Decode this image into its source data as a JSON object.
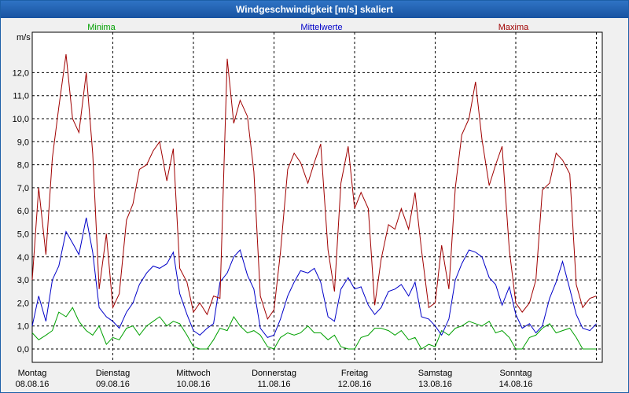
{
  "window": {
    "title": "Windgeschwindigkeit [m/s] skaliert"
  },
  "chart_data": {
    "type": "line",
    "title": "Windgeschwindigkeit [m/s] skaliert",
    "ylabel": "m/s",
    "xlabel": "",
    "ylim": [
      -0.5,
      13.5
    ],
    "yticks": [
      0,
      1,
      2,
      3,
      4,
      5,
      6,
      7,
      8,
      9,
      10,
      11,
      12
    ],
    "ytick_labels": [
      "0,0",
      "1,0",
      "2,0",
      "3,0",
      "4,0",
      "5,0",
      "6,0",
      "7,0",
      "8,0",
      "9,0",
      "10,0",
      "11,0",
      "12,0"
    ],
    "x_range": [
      0,
      7
    ],
    "x_ticks": [
      {
        "pos": 0.0,
        "day": "Montag",
        "date": "08.08.16"
      },
      {
        "pos": 1.0,
        "day": "Dienstag",
        "date": "09.08.16"
      },
      {
        "pos": 2.0,
        "day": "Mittwoch",
        "date": "10.08.16"
      },
      {
        "pos": 3.0,
        "day": "Donnerstag",
        "date": "11.08.16"
      },
      {
        "pos": 4.0,
        "day": "Freitag",
        "date": "12.08.16"
      },
      {
        "pos": 5.0,
        "day": "Samstag",
        "date": "13.08.16"
      },
      {
        "pos": 6.0,
        "day": "Sonntag",
        "date": "14.08.16"
      }
    ],
    "grid": true,
    "legend_position": "top",
    "series": [
      {
        "name": "Minima",
        "color": "#00a000",
        "x": [
          0,
          0.08,
          0.17,
          0.25,
          0.33,
          0.42,
          0.5,
          0.58,
          0.67,
          0.75,
          0.83,
          0.92,
          1,
          1.08,
          1.17,
          1.25,
          1.33,
          1.42,
          1.5,
          1.58,
          1.67,
          1.75,
          1.83,
          1.92,
          2,
          2.08,
          2.17,
          2.25,
          2.33,
          2.42,
          2.5,
          2.58,
          2.67,
          2.75,
          2.83,
          2.92,
          3,
          3.08,
          3.17,
          3.25,
          3.33,
          3.42,
          3.5,
          3.58,
          3.67,
          3.75,
          3.83,
          3.92,
          4,
          4.08,
          4.17,
          4.25,
          4.33,
          4.42,
          4.5,
          4.58,
          4.67,
          4.75,
          4.83,
          4.92,
          5,
          5.08,
          5.17,
          5.25,
          5.33,
          5.42,
          5.5,
          5.58,
          5.67,
          5.75,
          5.83,
          5.92,
          6,
          6.08,
          6.17,
          6.25,
          6.33,
          6.42,
          6.5,
          6.58,
          6.67,
          6.75,
          6.83,
          6.92,
          7
        ],
        "y": [
          0.7,
          0.4,
          0.6,
          0.8,
          1.6,
          1.4,
          1.8,
          1.2,
          0.8,
          0.6,
          1.0,
          0.2,
          0.5,
          0.4,
          0.9,
          1.0,
          0.6,
          1.0,
          1.2,
          1.4,
          1.0,
          1.2,
          1.1,
          0.6,
          0.1,
          0.0,
          0.0,
          0.4,
          0.9,
          0.8,
          1.4,
          1.0,
          0.7,
          0.8,
          0.6,
          0.1,
          0.0,
          0.5,
          0.7,
          0.6,
          0.7,
          1.0,
          0.7,
          0.7,
          0.4,
          0.6,
          0.1,
          0.0,
          0.0,
          0.5,
          0.6,
          0.9,
          0.9,
          0.8,
          0.6,
          0.8,
          0.4,
          0.5,
          0.0,
          0.2,
          0.1,
          0.8,
          0.6,
          0.9,
          1.0,
          1.2,
          1.1,
          1.0,
          1.2,
          0.7,
          0.8,
          0.5,
          0.0,
          0.0,
          0.5,
          0.6,
          0.9,
          1.1,
          0.7,
          0.8,
          0.9,
          0.5,
          0.0,
          0.0,
          0.0
        ]
      },
      {
        "name": "Mittelwerte",
        "color": "#0000c8",
        "x": [
          0,
          0.08,
          0.17,
          0.25,
          0.33,
          0.42,
          0.5,
          0.58,
          0.67,
          0.75,
          0.83,
          0.92,
          1,
          1.08,
          1.17,
          1.25,
          1.33,
          1.42,
          1.5,
          1.58,
          1.67,
          1.75,
          1.83,
          1.92,
          2,
          2.08,
          2.17,
          2.25,
          2.33,
          2.42,
          2.5,
          2.58,
          2.67,
          2.75,
          2.83,
          2.92,
          3,
          3.08,
          3.17,
          3.25,
          3.33,
          3.42,
          3.5,
          3.58,
          3.67,
          3.75,
          3.83,
          3.92,
          4,
          4.08,
          4.17,
          4.25,
          4.33,
          4.42,
          4.5,
          4.58,
          4.67,
          4.75,
          4.83,
          4.92,
          5,
          5.08,
          5.17,
          5.25,
          5.33,
          5.42,
          5.5,
          5.58,
          5.67,
          5.75,
          5.83,
          5.92,
          6,
          6.08,
          6.17,
          6.25,
          6.33,
          6.42,
          6.5,
          6.58,
          6.67,
          6.75,
          6.83,
          6.92,
          7
        ],
        "y": [
          1.0,
          2.3,
          1.2,
          3.0,
          3.6,
          5.1,
          4.6,
          4.1,
          5.7,
          4.2,
          1.8,
          1.4,
          1.2,
          0.9,
          1.6,
          2.0,
          2.8,
          3.3,
          3.6,
          3.5,
          3.7,
          4.2,
          2.4,
          1.5,
          0.8,
          0.6,
          0.9,
          1.1,
          2.9,
          3.3,
          4.0,
          4.3,
          3.2,
          2.6,
          0.9,
          0.5,
          0.6,
          1.3,
          2.3,
          2.9,
          3.4,
          3.3,
          3.5,
          2.9,
          1.4,
          1.2,
          2.6,
          3.1,
          2.6,
          2.7,
          1.9,
          1.5,
          1.8,
          2.5,
          2.6,
          2.8,
          2.3,
          2.9,
          1.4,
          1.3,
          1.0,
          0.6,
          1.3,
          3.0,
          3.7,
          4.3,
          4.2,
          4.0,
          3.1,
          2.8,
          1.9,
          2.7,
          1.5,
          0.9,
          1.1,
          0.7,
          1.0,
          2.2,
          2.9,
          3.8,
          2.6,
          1.5,
          0.9,
          0.8,
          1.1
        ]
      },
      {
        "name": "Maxima",
        "color": "#a00000",
        "x": [
          0,
          0.08,
          0.17,
          0.25,
          0.33,
          0.42,
          0.5,
          0.58,
          0.67,
          0.75,
          0.83,
          0.92,
          1,
          1.08,
          1.17,
          1.25,
          1.33,
          1.42,
          1.5,
          1.58,
          1.67,
          1.75,
          1.83,
          1.92,
          2,
          2.08,
          2.17,
          2.25,
          2.33,
          2.42,
          2.5,
          2.58,
          2.67,
          2.75,
          2.83,
          2.92,
          3,
          3.08,
          3.17,
          3.25,
          3.33,
          3.42,
          3.5,
          3.58,
          3.67,
          3.75,
          3.83,
          3.92,
          4,
          4.08,
          4.17,
          4.25,
          4.33,
          4.42,
          4.5,
          4.58,
          4.67,
          4.75,
          4.83,
          4.92,
          5,
          5.08,
          5.17,
          5.25,
          5.33,
          5.42,
          5.5,
          5.58,
          5.67,
          5.75,
          5.83,
          5.92,
          6,
          6.08,
          6.17,
          6.25,
          6.33,
          6.42,
          6.5,
          6.58,
          6.67,
          6.75,
          6.83,
          6.92,
          7
        ],
        "y": [
          3.0,
          7.0,
          4.1,
          8.3,
          10.5,
          12.8,
          10.0,
          9.4,
          12.0,
          8.5,
          2.6,
          5.0,
          1.8,
          2.4,
          5.6,
          6.3,
          7.8,
          8.0,
          8.6,
          9.0,
          7.3,
          8.7,
          3.5,
          2.9,
          1.6,
          2.0,
          1.5,
          2.3,
          2.2,
          12.6,
          9.8,
          10.8,
          10.1,
          7.7,
          2.3,
          1.3,
          1.7,
          4.2,
          7.8,
          8.5,
          8.1,
          7.2,
          8.1,
          8.9,
          4.3,
          2.5,
          7.2,
          8.8,
          6.1,
          6.8,
          6.1,
          1.9,
          3.9,
          5.4,
          5.2,
          6.1,
          5.2,
          6.8,
          4.3,
          1.8,
          2.0,
          4.5,
          2.6,
          7.0,
          9.3,
          10.0,
          11.6,
          9.1,
          7.1,
          8.0,
          8.8,
          4.3,
          2.0,
          1.6,
          2.0,
          3.0,
          6.9,
          7.2,
          8.5,
          8.2,
          7.6,
          2.8,
          1.8,
          2.2,
          2.3
        ]
      }
    ]
  }
}
